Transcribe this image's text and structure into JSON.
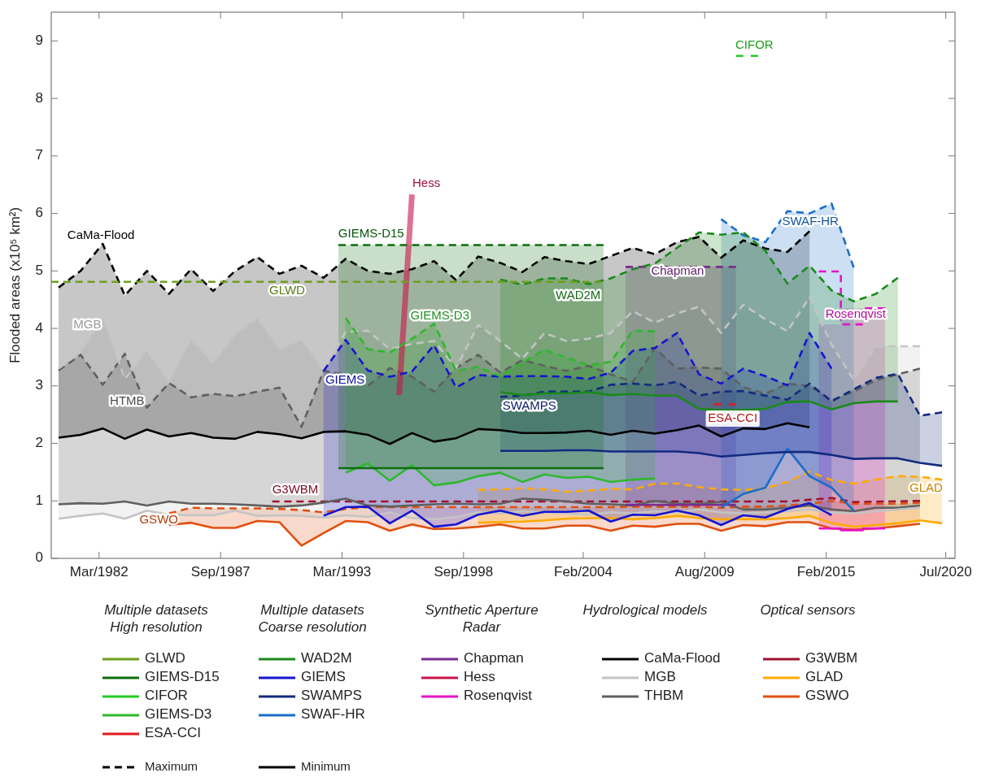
{
  "chart_data": {
    "type": "line",
    "ylabel": "Flooded areas (x10⁵ km²)",
    "xlim": [
      "1980-01",
      "2020-12"
    ],
    "ylim": [
      0,
      9.5
    ],
    "xticks": [
      {
        "value": "1982-03",
        "label": "Mar/1982"
      },
      {
        "value": "1987-09",
        "label": "Sep/1987"
      },
      {
        "value": "1993-03",
        "label": "Mar/1993"
      },
      {
        "value": "1998-09",
        "label": "Sep/1998"
      },
      {
        "value": "2004-02",
        "label": "Feb/2004"
      },
      {
        "value": "2009-08",
        "label": "Aug/2009"
      },
      {
        "value": "2015-02",
        "label": "Feb/2015"
      },
      {
        "value": "2020-07",
        "label": "Jul/2020"
      }
    ],
    "yticks": [
      0,
      1,
      2,
      3,
      4,
      5,
      6,
      7,
      8,
      9
    ],
    "legend": "bottom",
    "grid": false,
    "series": [
      {
        "name": "GLWD",
        "color": "#6f9e1e",
        "line_style": "dashed",
        "x": [
          "1980-01",
          "2004-12"
        ],
        "values": [
          4.81,
          4.81
        ]
      },
      {
        "name": "GIEMS-D15",
        "color": "#0b6e0b",
        "line_style": "dashed",
        "x": [
          "1993-01",
          "2005-01"
        ],
        "values": [
          5.45,
          5.45
        ],
        "lower": [
          1.57,
          1.57
        ],
        "upper": [
          5.45,
          5.45
        ]
      },
      {
        "color": "#0b6e0b",
        "line_style": "solid",
        "x": [
          "1993-01",
          "2005-01"
        ],
        "values": [
          1.57,
          1.57
        ]
      },
      {
        "name": "CIFOR",
        "color": "#22cc22",
        "line_style": "dashed",
        "x": [
          "2011-01",
          "2012-01"
        ],
        "values": [
          8.74,
          8.74
        ]
      },
      {
        "name": "GIEMS-D3",
        "color": "#2db82d",
        "line_style": "dashed",
        "x": [
          "1993-05",
          "1994-05",
          "1995-05",
          "1996-05",
          "1997-05",
          "1998-05",
          "1999-05",
          "2000-05",
          "2001-05",
          "2002-05",
          "2003-05",
          "2004-05",
          "2005-05",
          "2006-05",
          "2007-05"
        ],
        "values": [
          4.18,
          3.64,
          3.58,
          3.82,
          4.08,
          3.26,
          3.33,
          3.17,
          3.4,
          3.63,
          3.49,
          3.36,
          3.42,
          3.96,
          3.95
        ],
        "lower": [
          1.49,
          1.65,
          1.35,
          1.62,
          1.27,
          1.32,
          1.43,
          1.49,
          1.33,
          1.46,
          1.4,
          1.42,
          1.33,
          1.37,
          1.39
        ],
        "upper": [
          4.18,
          3.64,
          3.58,
          3.82,
          4.08,
          3.26,
          3.33,
          3.17,
          3.4,
          3.63,
          3.49,
          3.36,
          3.42,
          3.96,
          3.95
        ]
      },
      {
        "color": "#2db82d",
        "line_style": "solid",
        "x": [
          "1993-05",
          "1994-05",
          "1995-05",
          "1996-05",
          "1997-05",
          "1998-05",
          "1999-05",
          "2000-05",
          "2001-05",
          "2002-05",
          "2003-05",
          "2004-05",
          "2005-05",
          "2006-05",
          "2007-05"
        ],
        "values": [
          1.49,
          1.65,
          1.35,
          1.62,
          1.27,
          1.32,
          1.43,
          1.49,
          1.33,
          1.46,
          1.4,
          1.42,
          1.33,
          1.37,
          1.39
        ]
      },
      {
        "name": "ESA-CCI",
        "color": "#e41a1c",
        "line_style": "dashed",
        "x": [
          "2010-01",
          "2011-01"
        ],
        "values": [
          2.68,
          2.68
        ]
      },
      {
        "name": "WAD2M",
        "color": "#1a8a1a",
        "line_style": "dashed",
        "x": [
          "2000-05",
          "2001-05",
          "2002-05",
          "2003-05",
          "2004-05",
          "2005-05",
          "2006-05",
          "2007-05",
          "2008-05",
          "2009-05",
          "2010-05",
          "2011-05",
          "2012-05",
          "2013-05",
          "2014-05",
          "2015-05",
          "2016-05",
          "2017-05",
          "2018-05"
        ],
        "values": [
          4.85,
          4.76,
          4.87,
          4.87,
          4.77,
          4.87,
          5.03,
          5.13,
          5.4,
          5.67,
          5.63,
          5.67,
          5.35,
          4.78,
          5.09,
          4.66,
          4.47,
          4.6,
          4.88
        ],
        "lower": [
          2.89,
          2.84,
          2.87,
          2.87,
          2.89,
          2.84,
          2.86,
          2.83,
          2.83,
          2.6,
          2.58,
          2.58,
          2.6,
          2.72,
          2.73,
          2.59,
          2.7,
          2.73,
          2.73
        ],
        "upper": [
          4.85,
          4.76,
          4.87,
          4.87,
          4.77,
          4.87,
          5.03,
          5.13,
          5.4,
          5.67,
          5.63,
          5.67,
          5.35,
          4.78,
          5.09,
          4.66,
          4.47,
          4.6,
          4.88
        ]
      },
      {
        "color": "#1a8a1a",
        "line_style": "solid",
        "x": [
          "2000-05",
          "2001-05",
          "2002-05",
          "2003-05",
          "2004-05",
          "2005-05",
          "2006-05",
          "2007-05",
          "2008-05",
          "2009-05",
          "2010-05",
          "2011-05",
          "2012-05",
          "2013-05",
          "2014-05",
          "2015-05",
          "2016-05",
          "2017-05",
          "2018-05"
        ],
        "values": [
          2.89,
          2.84,
          2.87,
          2.87,
          2.89,
          2.84,
          2.86,
          2.83,
          2.83,
          2.6,
          2.58,
          2.58,
          2.6,
          2.72,
          2.73,
          2.59,
          2.7,
          2.73,
          2.73
        ]
      },
      {
        "name": "GIEMS",
        "color": "#1515d0",
        "line_style": "dashed",
        "x": [
          "1992-05",
          "1993-05",
          "1994-05",
          "1995-05",
          "1996-05",
          "1997-05",
          "1998-05",
          "1999-05",
          "2000-05",
          "2001-05",
          "2002-05",
          "2003-05",
          "2004-05",
          "2005-05",
          "2006-05",
          "2007-05",
          "2008-05",
          "2009-05",
          "2010-05",
          "2011-05",
          "2012-05",
          "2013-05",
          "2014-05",
          "2015-05"
        ],
        "values": [
          3.26,
          3.8,
          3.27,
          3.16,
          3.25,
          3.71,
          2.97,
          3.19,
          3.16,
          3.17,
          3.17,
          3.16,
          3.12,
          3.23,
          3.61,
          3.66,
          3.92,
          3.2,
          3.04,
          3.3,
          3.17,
          3.01,
          3.92,
          3.3
        ],
        "lower": [
          0.74,
          0.89,
          0.9,
          0.61,
          0.83,
          0.55,
          0.59,
          0.76,
          0.83,
          0.74,
          0.81,
          0.81,
          0.83,
          0.64,
          0.76,
          0.75,
          0.83,
          0.75,
          0.58,
          0.75,
          0.71,
          0.86,
          0.96,
          0.75
        ],
        "upper": [
          3.26,
          3.8,
          3.27,
          3.16,
          3.25,
          3.71,
          2.97,
          3.19,
          3.16,
          3.17,
          3.17,
          3.16,
          3.12,
          3.23,
          3.61,
          3.66,
          3.92,
          3.2,
          3.04,
          3.3,
          3.17,
          3.01,
          3.92,
          3.3
        ]
      },
      {
        "color": "#1515d0",
        "line_style": "solid",
        "x": [
          "1992-05",
          "1993-05",
          "1994-05",
          "1995-05",
          "1996-05",
          "1997-05",
          "1998-05",
          "1999-05",
          "2000-05",
          "2001-05",
          "2002-05",
          "2003-05",
          "2004-05",
          "2005-05",
          "2006-05",
          "2007-05",
          "2008-05",
          "2009-05",
          "2010-05",
          "2011-05",
          "2012-05",
          "2013-05",
          "2014-05",
          "2015-05"
        ],
        "values": [
          0.74,
          0.89,
          0.9,
          0.61,
          0.83,
          0.55,
          0.59,
          0.76,
          0.83,
          0.74,
          0.81,
          0.81,
          0.83,
          0.64,
          0.76,
          0.75,
          0.83,
          0.75,
          0.58,
          0.75,
          0.71,
          0.86,
          0.96,
          0.75
        ]
      },
      {
        "name": "SWAMPS",
        "color": "#122a80",
        "line_style": "dashed",
        "x": [
          "2000-05",
          "2001-05",
          "2002-05",
          "2003-05",
          "2004-05",
          "2005-05",
          "2006-05",
          "2007-05",
          "2008-05",
          "2009-05",
          "2010-05",
          "2011-05",
          "2012-05",
          "2013-05",
          "2014-05",
          "2015-05",
          "2016-05",
          "2017-05",
          "2018-05",
          "2019-05",
          "2020-05"
        ],
        "values": [
          2.81,
          2.83,
          2.9,
          2.9,
          2.9,
          3.02,
          3.04,
          3.01,
          3.07,
          2.83,
          2.9,
          2.91,
          2.83,
          2.76,
          3.04,
          2.73,
          2.94,
          3.14,
          3.21,
          2.48,
          2.54
        ],
        "lower": [
          1.87,
          1.87,
          1.87,
          1.88,
          1.88,
          1.86,
          1.86,
          1.86,
          1.86,
          1.83,
          1.77,
          1.8,
          1.83,
          1.85,
          1.85,
          1.8,
          1.73,
          1.74,
          1.74,
          1.66,
          1.61
        ],
        "upper": [
          2.81,
          2.83,
          2.9,
          2.9,
          2.9,
          3.02,
          3.04,
          3.01,
          3.07,
          2.83,
          2.9,
          2.91,
          2.83,
          2.76,
          3.04,
          2.73,
          2.94,
          3.14,
          3.21,
          2.48,
          2.54
        ]
      },
      {
        "color": "#122a80",
        "line_style": "solid",
        "x": [
          "2000-05",
          "2001-05",
          "2002-05",
          "2003-05",
          "2004-05",
          "2005-05",
          "2006-05",
          "2007-05",
          "2008-05",
          "2009-05",
          "2010-05",
          "2011-05",
          "2012-05",
          "2013-05",
          "2014-05",
          "2015-05",
          "2016-05",
          "2017-05",
          "2018-05",
          "2019-05",
          "2020-05"
        ],
        "values": [
          1.87,
          1.87,
          1.87,
          1.88,
          1.88,
          1.86,
          1.86,
          1.86,
          1.86,
          1.83,
          1.77,
          1.8,
          1.83,
          1.85,
          1.85,
          1.8,
          1.73,
          1.74,
          1.74,
          1.66,
          1.61
        ]
      },
      {
        "name": "SWAF-HR",
        "color": "#1a6ec8",
        "line_style": "dashed",
        "x": [
          "2010-05",
          "2011-05",
          "2012-05",
          "2013-05",
          "2014-05",
          "2015-05",
          "2016-05"
        ],
        "values": [
          5.9,
          5.62,
          5.5,
          6.04,
          6.0,
          6.17,
          5.06
        ],
        "lower": [
          0.89,
          1.12,
          1.23,
          1.91,
          1.43,
          1.23,
          0.83
        ],
        "upper": [
          5.9,
          5.62,
          5.5,
          6.04,
          6.0,
          6.17,
          5.06
        ]
      },
      {
        "color": "#1a6ec8",
        "line_style": "solid",
        "x": [
          "2010-05",
          "2011-05",
          "2012-05",
          "2013-05",
          "2014-05",
          "2015-05",
          "2016-05"
        ],
        "values": [
          0.89,
          1.12,
          1.23,
          1.91,
          1.43,
          1.23,
          0.83
        ]
      },
      {
        "name": "Chapman",
        "color": "#7b2d8e",
        "line_style": "dashed",
        "x": [
          "2006-01",
          "2011-01"
        ],
        "values": [
          5.07,
          5.07
        ],
        "lower": [
          0.93,
          0.93
        ],
        "upper": [
          5.07,
          5.07
        ]
      },
      {
        "color": "#7b2d8e",
        "line_style": "solid",
        "x": [
          "2006-01",
          "2011-01"
        ],
        "values": [
          0.93,
          0.93
        ]
      },
      {
        "name": "Hess",
        "color": "#c8144a",
        "x": [
          "1995-10",
          "1996-05"
        ],
        "values": [
          2.84,
          6.33
        ]
      },
      {
        "name": "Rosenqvist",
        "color": "#e612c8",
        "type": "step",
        "line_style": "dashed",
        "x": [
          "2014-10",
          "2015-10",
          "2016-10",
          "2017-10"
        ],
        "values": [
          4.99,
          4.07,
          4.35,
          4.35
        ],
        "lower": [
          0.52,
          0.49,
          0.52,
          0.52
        ],
        "upper": [
          4.99,
          4.07,
          4.35,
          4.35
        ]
      },
      {
        "color": "#e612c8",
        "type": "step",
        "line_style": "solid",
        "x": [
          "2014-10",
          "2015-10",
          "2016-10",
          "2017-10"
        ],
        "values": [
          0.52,
          0.49,
          0.52,
          0.52
        ]
      },
      {
        "name": "CaMa-Flood",
        "color": "#000000",
        "line_style": "dashed",
        "x": [
          "1980-05",
          "1981-05",
          "1982-05",
          "1983-05",
          "1984-05",
          "1985-05",
          "1986-05",
          "1987-05",
          "1988-05",
          "1989-05",
          "1990-05",
          "1991-05",
          "1992-05",
          "1993-05",
          "1994-05",
          "1995-05",
          "1996-05",
          "1997-05",
          "1998-05",
          "1999-05",
          "2000-05",
          "2001-05",
          "2002-05",
          "2003-05",
          "2004-05",
          "2005-05",
          "2006-05",
          "2007-05",
          "2008-05",
          "2009-05",
          "2010-05",
          "2011-05",
          "2012-05",
          "2013-05",
          "2014-05"
        ],
        "values": [
          4.71,
          5.0,
          5.47,
          4.57,
          5.0,
          4.6,
          5.03,
          4.65,
          5.0,
          5.24,
          4.95,
          5.09,
          4.88,
          5.21,
          5.0,
          4.95,
          5.03,
          5.17,
          4.84,
          5.25,
          5.14,
          4.98,
          5.24,
          5.17,
          5.12,
          5.26,
          5.4,
          5.29,
          5.5,
          5.59,
          5.23,
          5.53,
          5.39,
          5.33,
          5.69
        ],
        "lower": [
          2.1,
          2.15,
          2.26,
          2.08,
          2.24,
          2.12,
          2.18,
          2.1,
          2.08,
          2.2,
          2.16,
          2.09,
          2.2,
          2.21,
          2.15,
          1.99,
          2.18,
          2.03,
          2.09,
          2.25,
          2.23,
          2.18,
          2.18,
          2.19,
          2.22,
          2.15,
          2.22,
          2.17,
          2.23,
          2.31,
          2.12,
          2.26,
          2.25,
          2.35,
          2.28
        ],
        "upper": [
          4.71,
          5.0,
          5.47,
          4.57,
          5.0,
          4.6,
          5.03,
          4.65,
          5.0,
          5.24,
          4.95,
          5.09,
          4.88,
          5.21,
          5.0,
          4.95,
          5.03,
          5.17,
          4.84,
          5.25,
          5.14,
          4.98,
          5.24,
          5.17,
          5.12,
          5.26,
          5.4,
          5.29,
          5.5,
          5.59,
          5.23,
          5.53,
          5.39,
          5.33,
          5.69
        ]
      },
      {
        "color": "#000000",
        "line_style": "solid",
        "x": [
          "1980-05",
          "1981-05",
          "1982-05",
          "1983-05",
          "1984-05",
          "1985-05",
          "1986-05",
          "1987-05",
          "1988-05",
          "1989-05",
          "1990-05",
          "1991-05",
          "1992-05",
          "1993-05",
          "1994-05",
          "1995-05",
          "1996-05",
          "1997-05",
          "1998-05",
          "1999-05",
          "2000-05",
          "2001-05",
          "2002-05",
          "2003-05",
          "2004-05",
          "2005-05",
          "2006-05",
          "2007-05",
          "2008-05",
          "2009-05",
          "2010-05",
          "2011-05",
          "2012-05",
          "2013-05",
          "2014-05"
        ],
        "values": [
          2.1,
          2.15,
          2.26,
          2.08,
          2.24,
          2.12,
          2.18,
          2.1,
          2.08,
          2.2,
          2.16,
          2.09,
          2.2,
          2.21,
          2.15,
          1.99,
          2.18,
          2.03,
          2.09,
          2.25,
          2.23,
          2.18,
          2.18,
          2.19,
          2.22,
          2.15,
          2.22,
          2.17,
          2.23,
          2.31,
          2.12,
          2.26,
          2.25,
          2.35,
          2.28
        ]
      },
      {
        "name": "MGB",
        "color": "#c4c4c4",
        "line_style": "dashed",
        "x": [
          "1980-05",
          "1981-05",
          "1982-05",
          "1983-05",
          "1984-05",
          "1985-05",
          "1986-05",
          "1987-05",
          "1988-05",
          "1989-05",
          "1990-05",
          "1991-05",
          "1992-05",
          "1993-05",
          "1994-05",
          "1995-05",
          "1996-05",
          "1997-05",
          "1998-05",
          "1999-05",
          "2000-05",
          "2001-05",
          "2002-05",
          "2003-05",
          "2004-05",
          "2005-05",
          "2006-05",
          "2007-05",
          "2008-05",
          "2009-05",
          "2010-05",
          "2011-05",
          "2012-05",
          "2013-05",
          "2014-05",
          "2015-05",
          "2016-05",
          "2017-05",
          "2018-05",
          "2019-05"
        ],
        "values": [
          3.3,
          3.59,
          4.18,
          3.12,
          3.61,
          3.07,
          3.81,
          3.4,
          3.89,
          4.18,
          3.64,
          3.8,
          3.26,
          3.94,
          3.96,
          3.64,
          3.73,
          3.78,
          3.31,
          4.06,
          3.78,
          3.47,
          3.92,
          3.78,
          3.82,
          3.92,
          4.3,
          4.1,
          4.26,
          4.38,
          3.92,
          4.41,
          4.16,
          3.95,
          4.54,
          3.72,
          3.1,
          3.68,
          3.69,
          3.69
        ],
        "lower": [
          0.69,
          0.74,
          0.78,
          0.69,
          0.83,
          0.76,
          0.75,
          0.75,
          0.83,
          0.74,
          0.75,
          0.74,
          0.71,
          0.75,
          0.72,
          0.8,
          0.7,
          0.68,
          0.72,
          0.8,
          0.78,
          0.82,
          0.8,
          0.78,
          0.76,
          0.8,
          0.78,
          0.82,
          0.8,
          0.85,
          0.8,
          0.78,
          0.8,
          0.82,
          0.85,
          0.8,
          0.78,
          0.82,
          0.85,
          0.88
        ],
        "upper": [
          3.3,
          3.59,
          4.18,
          3.12,
          3.61,
          3.07,
          3.81,
          3.4,
          3.89,
          4.18,
          3.64,
          3.8,
          3.26,
          3.94,
          3.96,
          3.64,
          3.73,
          3.78,
          3.31,
          4.06,
          3.78,
          3.47,
          3.92,
          3.78,
          3.82,
          3.92,
          4.3,
          4.1,
          4.26,
          4.38,
          3.92,
          4.41,
          4.16,
          3.95,
          4.54,
          3.72,
          3.1,
          3.68,
          3.69,
          3.69
        ]
      },
      {
        "color": "#c4c4c4",
        "line_style": "solid",
        "x": [
          "1980-05",
          "1981-05",
          "1982-05",
          "1983-05",
          "1984-05",
          "1985-05",
          "1986-05",
          "1987-05",
          "1988-05",
          "1989-05",
          "1990-05",
          "1991-05",
          "1992-05",
          "1993-05",
          "1994-05",
          "1995-05",
          "1996-05",
          "1997-05",
          "1998-05",
          "1999-05",
          "2000-05",
          "2001-05",
          "2002-05",
          "2003-05",
          "2004-05",
          "2005-05",
          "2006-05",
          "2007-05",
          "2008-05",
          "2009-05",
          "2010-05",
          "2011-05",
          "2012-05",
          "2013-05",
          "2014-05",
          "2015-05",
          "2016-05",
          "2017-05",
          "2018-05",
          "2019-05"
        ],
        "values": [
          0.69,
          0.74,
          0.78,
          0.69,
          0.83,
          0.76,
          0.75,
          0.75,
          0.83,
          0.74,
          0.75,
          0.74,
          0.71,
          0.75,
          0.72,
          0.8,
          0.7,
          0.68,
          0.72,
          0.8,
          0.78,
          0.82,
          0.8,
          0.78,
          0.76,
          0.8,
          0.78,
          0.82,
          0.8,
          0.85,
          0.8,
          0.78,
          0.8,
          0.82,
          0.85,
          0.8,
          0.78,
          0.82,
          0.85,
          0.88
        ]
      },
      {
        "name": "THBM",
        "color": "#606060",
        "line_style": "dashed",
        "x": [
          "1980-05",
          "1981-05",
          "1982-05",
          "1983-05",
          "1984-05",
          "1985-05",
          "1986-05",
          "1987-05",
          "1988-05",
          "1989-05",
          "1990-05",
          "1991-05",
          "1992-05",
          "1993-05",
          "1994-05",
          "1995-05",
          "1996-05",
          "1997-05",
          "1998-05",
          "1999-05",
          "2000-05",
          "2001-05",
          "2002-05",
          "2003-05",
          "2004-05",
          "2005-05",
          "2006-05",
          "2007-05",
          "2008-05",
          "2009-05",
          "2010-05",
          "2011-05",
          "2012-05",
          "2013-05",
          "2014-05",
          "2015-05",
          "2016-05",
          "2017-05",
          "2018-05",
          "2019-05"
        ],
        "values": [
          3.27,
          3.54,
          3.02,
          3.56,
          2.62,
          3.05,
          2.8,
          2.86,
          2.82,
          2.9,
          2.97,
          2.29,
          3.26,
          3.2,
          3.0,
          3.31,
          3.16,
          2.9,
          3.31,
          3.54,
          3.23,
          3.45,
          3.35,
          3.26,
          3.35,
          3.2,
          3.07,
          3.66,
          3.3,
          3.32,
          3.3,
          2.98,
          2.86,
          3.04,
          3.0,
          2.75,
          2.9,
          3.1,
          3.2,
          3.3
        ],
        "lower": [
          0.94,
          0.96,
          0.95,
          0.99,
          0.92,
          0.99,
          0.95,
          0.95,
          0.94,
          0.92,
          0.9,
          0.92,
          0.97,
          1.04,
          0.92,
          0.9,
          0.92,
          0.94,
          0.95,
          0.94,
          0.95,
          1.04,
          1.02,
          0.99,
          0.95,
          0.94,
          0.92,
          1.0,
          0.95,
          0.95,
          0.98,
          0.85,
          0.85,
          0.88,
          0.92,
          0.85,
          0.82,
          0.88,
          0.88,
          0.92
        ],
        "upper": [
          3.27,
          3.54,
          3.02,
          3.56,
          2.62,
          3.05,
          2.8,
          2.86,
          2.82,
          2.9,
          2.97,
          2.29,
          3.26,
          3.2,
          3.0,
          3.31,
          3.16,
          2.9,
          3.31,
          3.54,
          3.23,
          3.45,
          3.35,
          3.26,
          3.35,
          3.2,
          3.07,
          3.66,
          3.3,
          3.32,
          3.3,
          2.98,
          2.86,
          3.04,
          3.0,
          2.75,
          2.9,
          3.1,
          3.2,
          3.3
        ]
      },
      {
        "color": "#606060",
        "line_style": "solid",
        "x": [
          "1980-05",
          "1981-05",
          "1982-05",
          "1983-05",
          "1984-05",
          "1985-05",
          "1986-05",
          "1987-05",
          "1988-05",
          "1989-05",
          "1990-05",
          "1991-05",
          "1992-05",
          "1993-05",
          "1994-05",
          "1995-05",
          "1996-05",
          "1997-05",
          "1998-05",
          "1999-05",
          "2000-05",
          "2001-05",
          "2002-05",
          "2003-05",
          "2004-05",
          "2005-05",
          "2006-05",
          "2007-05",
          "2008-05",
          "2009-05",
          "2010-05",
          "2011-05",
          "2012-05",
          "2013-05",
          "2014-05",
          "2015-05",
          "2016-05",
          "2017-05",
          "2018-05",
          "2019-05"
        ],
        "values": [
          0.94,
          0.96,
          0.95,
          0.99,
          0.92,
          0.99,
          0.95,
          0.95,
          0.94,
          0.92,
          0.9,
          0.92,
          0.97,
          1.04,
          0.92,
          0.9,
          0.92,
          0.94,
          0.95,
          0.94,
          0.95,
          1.04,
          1.02,
          0.99,
          0.95,
          0.94,
          0.92,
          1.0,
          0.95,
          0.95,
          0.98,
          0.85,
          0.85,
          0.88,
          0.92,
          0.85,
          0.82,
          0.88,
          0.88,
          0.92
        ]
      },
      {
        "name": "G3WBM",
        "color": "#a01030",
        "line_style": "dashed",
        "x": [
          "1990-01",
          "2013-05",
          "2015-05",
          "2016-05",
          "2019-05"
        ],
        "values": [
          0.99,
          0.99,
          1.05,
          0.98,
          1.0
        ]
      },
      {
        "name": "GLAD",
        "color": "#ffaa00",
        "line_style": "dashed",
        "x": [
          "1999-05",
          "2000-05",
          "2001-05",
          "2002-05",
          "2003-05",
          "2004-05",
          "2005-05",
          "2006-05",
          "2007-05",
          "2008-05",
          "2009-05",
          "2010-05",
          "2011-05",
          "2012-05",
          "2013-05",
          "2014-05",
          "2015-05",
          "2016-05",
          "2017-05",
          "2018-05",
          "2019-05",
          "2020-05"
        ],
        "values": [
          1.19,
          1.2,
          1.22,
          1.2,
          1.16,
          1.18,
          1.21,
          1.2,
          1.3,
          1.3,
          1.24,
          1.2,
          1.19,
          1.22,
          1.33,
          1.51,
          1.36,
          1.3,
          1.37,
          1.43,
          1.42,
          1.37
        ],
        "lower": [
          0.62,
          0.63,
          0.64,
          0.66,
          0.69,
          0.7,
          0.7,
          0.68,
          0.7,
          0.74,
          0.7,
          0.68,
          0.68,
          0.68,
          0.7,
          0.74,
          0.61,
          0.55,
          0.58,
          0.61,
          0.66,
          0.61
        ],
        "upper": [
          1.19,
          1.2,
          1.22,
          1.2,
          1.16,
          1.18,
          1.21,
          1.2,
          1.3,
          1.3,
          1.24,
          1.2,
          1.19,
          1.22,
          1.33,
          1.51,
          1.36,
          1.3,
          1.37,
          1.43,
          1.42,
          1.37
        ]
      },
      {
        "color": "#ffaa00",
        "line_style": "solid",
        "x": [
          "1999-05",
          "2000-05",
          "2001-05",
          "2002-05",
          "2003-05",
          "2004-05",
          "2005-05",
          "2006-05",
          "2007-05",
          "2008-05",
          "2009-05",
          "2010-05",
          "2011-05",
          "2012-05",
          "2013-05",
          "2014-05",
          "2015-05",
          "2016-05",
          "2017-05",
          "2018-05",
          "2019-05",
          "2020-05"
        ],
        "values": [
          0.62,
          0.63,
          0.64,
          0.66,
          0.69,
          0.7,
          0.7,
          0.68,
          0.7,
          0.74,
          0.7,
          0.68,
          0.68,
          0.68,
          0.7,
          0.74,
          0.61,
          0.55,
          0.58,
          0.61,
          0.66,
          0.61
        ]
      },
      {
        "name": "GSWO",
        "color": "#e05010",
        "line_style": "dashed",
        "x": [
          "1985-05",
          "1986-05",
          "1987-05",
          "1988-05",
          "1989-05",
          "1990-05",
          "1991-05",
          "1992-05",
          "1993-05",
          "1994-05",
          "1995-05",
          "1996-05",
          "1997-05",
          "1998-05",
          "1999-05",
          "2000-05",
          "2001-05",
          "2002-05",
          "2003-05",
          "2004-05",
          "2005-05",
          "2006-05",
          "2007-05",
          "2008-05",
          "2009-05",
          "2010-05",
          "2011-05",
          "2012-05",
          "2013-05",
          "2014-05",
          "2015-05",
          "2016-05",
          "2017-05",
          "2018-05",
          "2019-05"
        ],
        "values": [
          0.78,
          0.88,
          0.87,
          0.87,
          0.87,
          0.86,
          0.84,
          0.8,
          0.86,
          0.89,
          0.89,
          0.89,
          0.89,
          0.89,
          0.89,
          0.89,
          0.89,
          0.89,
          0.89,
          0.89,
          0.89,
          0.9,
          0.9,
          0.9,
          0.9,
          0.88,
          0.9,
          0.9,
          0.92,
          0.95,
          1.0,
          0.95,
          0.95,
          0.95,
          0.97
        ],
        "lower": [
          0.58,
          0.62,
          0.53,
          0.53,
          0.65,
          0.63,
          0.22,
          0.44,
          0.65,
          0.63,
          0.48,
          0.59,
          0.51,
          0.52,
          0.55,
          0.59,
          0.52,
          0.52,
          0.57,
          0.57,
          0.48,
          0.57,
          0.55,
          0.6,
          0.6,
          0.48,
          0.58,
          0.56,
          0.63,
          0.63,
          0.52,
          0.5,
          0.52,
          0.56,
          0.6
        ],
        "upper": [
          0.78,
          0.88,
          0.87,
          0.87,
          0.87,
          0.86,
          0.84,
          0.8,
          0.86,
          0.89,
          0.89,
          0.89,
          0.89,
          0.89,
          0.89,
          0.89,
          0.89,
          0.89,
          0.89,
          0.89,
          0.89,
          0.9,
          0.9,
          0.9,
          0.9,
          0.88,
          0.9,
          0.9,
          0.92,
          0.95,
          1.0,
          0.95,
          0.95,
          0.95,
          0.97
        ]
      },
      {
        "color": "#e05010",
        "line_style": "solid",
        "x": [
          "1985-05",
          "1986-05",
          "1987-05",
          "1988-05",
          "1989-05",
          "1990-05",
          "1991-05",
          "1992-05",
          "1993-05",
          "1994-05",
          "1995-05",
          "1996-05",
          "1997-05",
          "1998-05",
          "1999-05",
          "2000-05",
          "2001-05",
          "2002-05",
          "2003-05",
          "2004-05",
          "2005-05",
          "2006-05",
          "2007-05",
          "2008-05",
          "2009-05",
          "2010-05",
          "2011-05",
          "2012-05",
          "2013-05",
          "2014-05",
          "2015-05",
          "2016-05",
          "2017-05",
          "2018-05",
          "2019-05"
        ],
        "values": [
          0.58,
          0.62,
          0.53,
          0.53,
          0.65,
          0.63,
          0.22,
          0.44,
          0.65,
          0.63,
          0.48,
          0.59,
          0.51,
          0.52,
          0.55,
          0.59,
          0.52,
          0.52,
          0.57,
          0.57,
          0.48,
          0.57,
          0.55,
          0.6,
          0.6,
          0.48,
          0.58,
          0.56,
          0.63,
          0.63,
          0.52,
          0.5,
          0.52,
          0.56,
          0.6
        ]
      }
    ],
    "annotations": [
      "Multiple datasets\nHigh resolution",
      "Multiple datasets\nCoarse resolution",
      "Synthetic Aperture\nRadar",
      "Hydrological models",
      "Optical sensors",
      "Maximum",
      "Minimum",
      "GLWD",
      "GIEMS-D15",
      "CIFOR",
      "GIEMS-D3",
      "ESA-CCI",
      "WAD2M",
      "GIEMS",
      "SWAMPS",
      "SWAF-HR",
      "Chapman",
      "Hess",
      "Rosenqvist",
      "CaMa-Flood",
      "MGB",
      "HTMB",
      "G3WBM",
      "GLAD",
      "GSWO"
    ]
  }
}
